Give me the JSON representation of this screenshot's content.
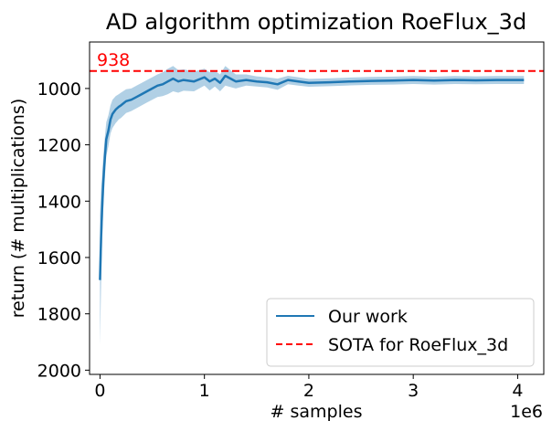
{
  "chart_data": {
    "type": "line",
    "title": "AD algorithm optimization RoeFlux_3d",
    "xlabel": "# samples",
    "ylabel": "return (# multiplications)",
    "x_offset_label": "1e6",
    "xlim": [
      -0.1,
      4.25
    ],
    "ylim": [
      2015,
      835
    ],
    "y_inverted": true,
    "xticks": [
      0,
      1,
      2,
      3,
      4
    ],
    "yticks": [
      1000,
      1200,
      1400,
      1600,
      1800,
      2000
    ],
    "grid": false,
    "legend_position": "lower-right",
    "series": [
      {
        "name": "Our work",
        "color": "#1f77b4",
        "x": [
          0.0,
          0.01,
          0.02,
          0.03,
          0.04,
          0.05,
          0.06,
          0.08,
          0.1,
          0.12,
          0.15,
          0.18,
          0.2,
          0.25,
          0.3,
          0.35,
          0.4,
          0.45,
          0.5,
          0.55,
          0.6,
          0.65,
          0.7,
          0.75,
          0.8,
          0.9,
          1.0,
          1.05,
          1.1,
          1.15,
          1.2,
          1.3,
          1.4,
          1.5,
          1.6,
          1.7,
          1.8,
          1.9,
          2.0,
          2.2,
          2.4,
          2.6,
          2.8,
          3.0,
          3.2,
          3.4,
          3.6,
          3.8,
          4.0,
          4.06
        ],
        "y": [
          1680,
          1530,
          1430,
          1340,
          1280,
          1230,
          1180,
          1150,
          1110,
          1090,
          1075,
          1065,
          1060,
          1045,
          1040,
          1030,
          1020,
          1010,
          1000,
          990,
          985,
          975,
          965,
          975,
          970,
          975,
          960,
          975,
          965,
          980,
          955,
          975,
          970,
          975,
          978,
          985,
          970,
          975,
          980,
          978,
          975,
          973,
          972,
          970,
          972,
          970,
          971,
          970,
          970,
          970
        ],
        "band": [
          230,
          170,
          120,
          95,
          80,
          70,
          60,
          55,
          50,
          50,
          48,
          45,
          45,
          42,
          40,
          40,
          40,
          40,
          40,
          40,
          42,
          45,
          45,
          40,
          38,
          35,
          30,
          32,
          28,
          30,
          35,
          25,
          20,
          18,
          18,
          20,
          15,
          15,
          14,
          14,
          14,
          14,
          14,
          14,
          14,
          14,
          14,
          14,
          14,
          14
        ]
      },
      {
        "name": "SOTA for RoeFlux_3d",
        "color": "#ff0000",
        "style": "dashed",
        "y": 938
      }
    ],
    "annotation": {
      "text": "938",
      "color": "#ff0000"
    }
  }
}
